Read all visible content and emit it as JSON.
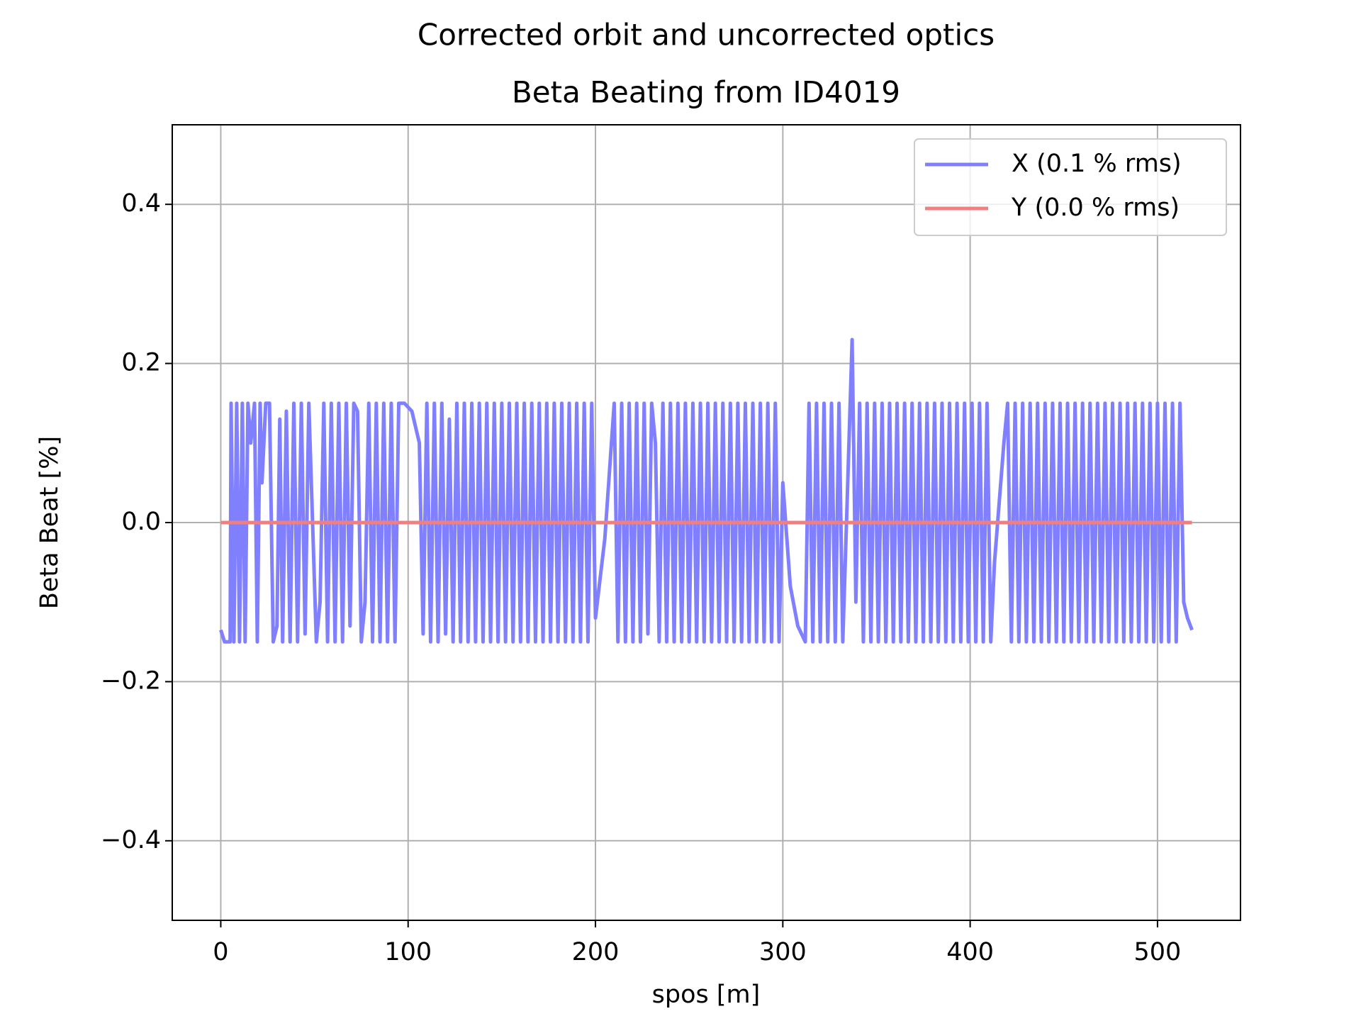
{
  "chart_data": {
    "type": "line",
    "title": "Corrected orbit and uncorrected optics",
    "subtitle": "Beta Beating from ID4019",
    "x_label": "spos [m]",
    "y_label": "Beta Beat [%]",
    "xlim": [
      -25.9,
      544.3
    ],
    "ylim": [
      -0.5,
      0.5
    ],
    "xticks": [
      0,
      100,
      200,
      300,
      400,
      500
    ],
    "yticks": [
      {
        "value": -0.4,
        "label": "−0.4"
      },
      {
        "value": -0.2,
        "label": "−0.2"
      },
      {
        "value": 0,
        "label": "0.0"
      },
      0.2,
      0.4
    ],
    "grid": true,
    "legend": "upper right",
    "series": [
      {
        "name": "X (0.1 % rms)",
        "color": "#8080ff",
        "x": [
          0,
          2,
          5,
          5.5,
          7,
          8.5,
          10,
          11.5,
          13,
          14.5,
          16,
          18,
          19.5,
          21,
          22,
          24,
          26,
          28,
          30,
          31.5,
          33,
          35,
          37,
          39,
          41,
          43,
          45,
          47,
          49,
          51,
          53,
          55,
          57,
          59,
          61,
          63,
          65,
          67,
          69,
          71,
          73,
          75,
          77,
          79,
          81,
          83,
          85,
          87,
          89,
          91,
          93,
          95,
          98,
          102,
          106,
          108,
          110,
          112,
          114,
          116,
          118,
          120,
          122,
          124,
          126,
          128,
          130,
          132,
          134,
          136,
          138,
          140,
          142,
          144,
          146,
          148,
          150,
          152,
          154,
          156,
          158,
          160,
          162,
          164,
          166,
          168,
          170,
          172,
          174,
          176,
          178,
          180,
          182,
          184,
          186,
          188,
          190,
          192,
          194,
          196,
          198,
          200,
          205,
          210,
          212,
          214,
          216,
          218,
          220,
          222,
          224,
          226,
          228,
          230,
          232,
          234,
          236,
          238,
          240,
          242,
          244,
          246,
          248,
          250,
          252,
          254,
          256,
          258,
          260,
          262,
          264,
          266,
          268,
          270,
          272,
          274,
          276,
          278,
          280,
          282,
          284,
          286,
          288,
          290,
          292,
          294,
          296,
          298,
          300,
          304,
          308,
          312,
          314,
          316,
          318,
          320,
          322,
          324,
          326,
          328,
          330,
          332,
          334,
          337,
          339,
          341,
          343,
          345,
          347,
          349,
          351,
          353,
          355,
          357,
          359,
          361,
          363,
          365,
          367,
          369,
          371,
          373,
          375,
          377,
          379,
          381,
          383,
          385,
          387,
          389,
          391,
          393,
          395,
          397,
          399,
          401,
          403,
          405,
          407,
          409,
          411,
          413,
          418,
          420,
          422,
          424,
          426,
          428,
          430,
          432,
          434,
          436,
          438,
          440,
          442,
          444,
          446,
          448,
          450,
          452,
          454,
          456,
          458,
          460,
          462,
          464,
          466,
          468,
          470,
          472,
          474,
          476,
          478,
          480,
          482,
          484,
          486,
          488,
          490,
          492,
          494,
          496,
          498,
          500,
          502,
          504,
          506,
          508,
          510,
          512,
          514,
          516,
          518.4
        ],
        "values": [
          -0.135,
          -0.15,
          -0.15,
          0.15,
          -0.15,
          0.15,
          -0.15,
          0.15,
          -0.15,
          0.15,
          0.1,
          0.15,
          -0.15,
          0.15,
          0.05,
          0.15,
          0.15,
          -0.15,
          -0.13,
          0.13,
          -0.15,
          0.14,
          -0.15,
          0.15,
          -0.15,
          0.15,
          -0.14,
          0.15,
          0.0,
          -0.15,
          -0.1,
          0.15,
          -0.15,
          0.15,
          -0.15,
          0.15,
          -0.15,
          0.15,
          -0.13,
          0.15,
          0.14,
          -0.15,
          -0.1,
          0.15,
          -0.15,
          0.15,
          -0.15,
          0.15,
          -0.15,
          0.15,
          -0.15,
          0.15,
          0.15,
          0.14,
          0.1,
          -0.14,
          0.15,
          -0.15,
          0.15,
          -0.15,
          0.15,
          -0.14,
          0.13,
          -0.15,
          0.15,
          -0.15,
          0.15,
          -0.15,
          0.15,
          -0.15,
          0.15,
          -0.15,
          0.15,
          -0.15,
          0.15,
          -0.15,
          0.15,
          -0.15,
          0.15,
          -0.15,
          0.15,
          -0.15,
          0.15,
          -0.15,
          0.15,
          -0.15,
          0.15,
          -0.15,
          0.15,
          -0.15,
          0.15,
          -0.15,
          0.15,
          -0.15,
          0.15,
          -0.15,
          0.15,
          -0.15,
          0.15,
          -0.15,
          0.15,
          -0.12,
          -0.02,
          0.15,
          -0.15,
          0.15,
          -0.15,
          0.15,
          -0.15,
          0.15,
          -0.15,
          0.15,
          -0.14,
          0.15,
          0.1,
          -0.15,
          0.15,
          -0.15,
          0.15,
          -0.15,
          0.15,
          -0.15,
          0.15,
          -0.15,
          0.15,
          -0.15,
          0.15,
          -0.15,
          0.15,
          -0.15,
          0.15,
          -0.15,
          0.15,
          -0.15,
          0.15,
          -0.15,
          0.15,
          -0.15,
          0.15,
          -0.15,
          0.15,
          -0.15,
          0.15,
          -0.15,
          0.15,
          -0.15,
          0.15,
          -0.15,
          0.05,
          -0.08,
          -0.13,
          -0.15,
          0.15,
          -0.15,
          0.15,
          -0.15,
          0.15,
          -0.15,
          0.15,
          -0.15,
          0.15,
          -0.15,
          0.0,
          0.23,
          -0.1,
          0.15,
          -0.15,
          0.15,
          -0.15,
          0.15,
          -0.15,
          0.15,
          -0.15,
          0.15,
          -0.15,
          0.15,
          -0.15,
          0.15,
          -0.15,
          0.15,
          -0.15,
          0.15,
          -0.15,
          0.15,
          -0.15,
          0.15,
          -0.15,
          0.15,
          -0.15,
          0.15,
          -0.15,
          0.15,
          -0.15,
          0.15,
          -0.15,
          0.15,
          -0.15,
          0.15,
          -0.15,
          0.15,
          -0.15,
          -0.05,
          0.1,
          0.15,
          -0.15,
          0.15,
          -0.15,
          0.15,
          -0.15,
          0.15,
          -0.15,
          0.15,
          -0.15,
          0.15,
          -0.15,
          0.15,
          -0.15,
          0.15,
          -0.15,
          0.15,
          -0.15,
          0.15,
          -0.15,
          0.15,
          -0.15,
          0.15,
          -0.15,
          0.15,
          -0.15,
          0.15,
          -0.15,
          0.15,
          -0.15,
          0.15,
          -0.15,
          0.15,
          -0.15,
          0.15,
          -0.15,
          0.15,
          -0.15,
          0.15,
          -0.15,
          0.15,
          -0.15,
          0.15,
          -0.15,
          0.15,
          -0.15,
          0.15,
          -0.1,
          -0.12,
          -0.135
        ]
      },
      {
        "name": "Y (0.0 % rms)",
        "color": "#f08080",
        "x": [
          0,
          518.4
        ],
        "values": [
          0,
          0
        ]
      }
    ]
  }
}
